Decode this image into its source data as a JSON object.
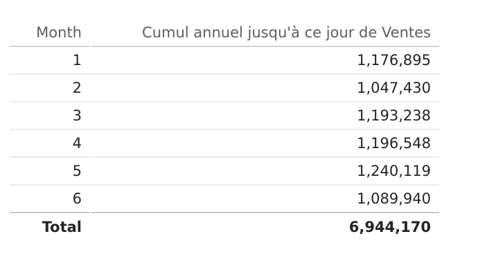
{
  "table": {
    "columns": [
      "Month",
      "Cumul annuel jusqu'à ce jour de Ventes"
    ],
    "rows": [
      [
        "1",
        "1,176,895"
      ],
      [
        "2",
        "1,047,430"
      ],
      [
        "3",
        "1,193,238"
      ],
      [
        "4",
        "1,196,548"
      ],
      [
        "5",
        "1,240,119"
      ],
      [
        "6",
        "1,089,940"
      ]
    ],
    "total": [
      "Total",
      "6,944,170"
    ]
  }
}
